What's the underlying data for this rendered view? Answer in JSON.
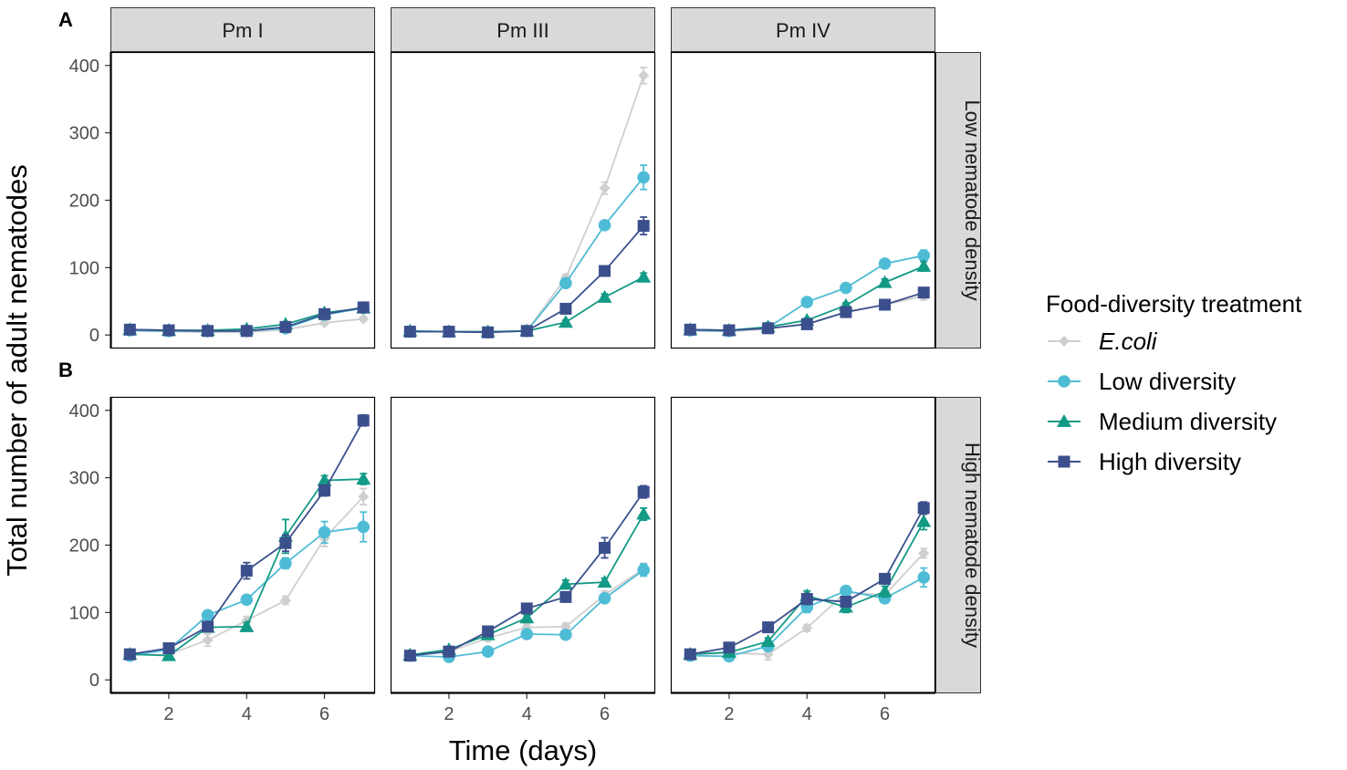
{
  "chart_data": {
    "type": "line",
    "panel_labels": [
      "A",
      "B"
    ],
    "xlabel": "Time (days)",
    "ylabel": "Total number of adult nematodes",
    "x": [
      1,
      2,
      3,
      4,
      5,
      6,
      7
    ],
    "xlim": [
      0.5,
      7.3
    ],
    "ylim": [
      -20,
      420
    ],
    "x_ticks": [
      2,
      4,
      6
    ],
    "y_ticks": [
      0,
      100,
      200,
      300,
      400
    ],
    "columns": [
      "Pm I",
      "Pm III",
      "Pm IV"
    ],
    "rows": [
      "Low nematode density",
      "High nematode density"
    ],
    "legend": {
      "title": "Food-diversity treatment",
      "position": "right",
      "entries": [
        {
          "label": "E.coli",
          "shape": "diamond",
          "color": "#cfcfcf",
          "italic": true
        },
        {
          "label": "Low diversity",
          "shape": "circle",
          "color": "#4fbcd6",
          "italic": false
        },
        {
          "label": "Medium diversity",
          "shape": "triangle",
          "color": "#139a86",
          "italic": false
        },
        {
          "label": "High diversity",
          "shape": "square",
          "color": "#3b4f8c",
          "italic": false
        }
      ]
    },
    "panels": [
      {
        "row": 0,
        "col": 0,
        "series": [
          {
            "name": "E.coli",
            "values": [
              6,
              5,
              4,
              4,
              8,
              18,
              24
            ],
            "err": [
              2,
              2,
              2,
              2,
              2,
              3,
              3
            ]
          },
          {
            "name": "Low diversity",
            "values": [
              7,
              6,
              6,
              6,
              10,
              30,
              40
            ],
            "err": [
              2,
              2,
              2,
              2,
              2,
              3,
              3
            ]
          },
          {
            "name": "Medium diversity",
            "values": [
              8,
              7,
              7,
              9,
              16,
              33,
              40
            ],
            "err": [
              2,
              2,
              2,
              2,
              2,
              3,
              3
            ]
          },
          {
            "name": "High diversity",
            "values": [
              8,
              7,
              6,
              6,
              12,
              31,
              41
            ],
            "err": [
              2,
              2,
              2,
              2,
              2,
              3,
              3
            ]
          }
        ]
      },
      {
        "row": 0,
        "col": 1,
        "series": [
          {
            "name": "E.coli",
            "values": [
              5,
              5,
              4,
              6,
              85,
              218,
              385
            ],
            "err": [
              2,
              2,
              2,
              2,
              5,
              9,
              12
            ]
          },
          {
            "name": "Low diversity",
            "values": [
              5,
              5,
              4,
              6,
              77,
              163,
              234
            ],
            "err": [
              2,
              2,
              2,
              2,
              6,
              6,
              18
            ]
          },
          {
            "name": "Medium diversity",
            "values": [
              6,
              5,
              5,
              6,
              19,
              56,
              86
            ],
            "err": [
              2,
              2,
              2,
              2,
              3,
              5,
              6
            ]
          },
          {
            "name": "High diversity",
            "values": [
              5,
              5,
              4,
              6,
              39,
              95,
              162
            ],
            "err": [
              2,
              2,
              2,
              2,
              3,
              4,
              13
            ]
          }
        ]
      },
      {
        "row": 0,
        "col": 2,
        "series": [
          {
            "name": "E.coli",
            "values": [
              6,
              5,
              9,
              17,
              34,
              45,
              58
            ],
            "err": [
              2,
              2,
              2,
              2,
              3,
              3,
              6
            ]
          },
          {
            "name": "Low diversity",
            "values": [
              7,
              6,
              11,
              49,
              70,
              106,
              118
            ],
            "err": [
              2,
              2,
              2,
              3,
              4,
              4,
              8
            ]
          },
          {
            "name": "Medium diversity",
            "values": [
              8,
              7,
              12,
              22,
              44,
              78,
              102
            ],
            "err": [
              2,
              2,
              2,
              3,
              4,
              5,
              7
            ]
          },
          {
            "name": "High diversity",
            "values": [
              8,
              7,
              10,
              16,
              34,
              45,
              63
            ],
            "err": [
              2,
              2,
              2,
              2,
              3,
              3,
              5
            ]
          }
        ]
      },
      {
        "row": 1,
        "col": 0,
        "series": [
          {
            "name": "E.coli",
            "values": [
              37,
              38,
              59,
              88,
              118,
              210,
              272
            ],
            "err": [
              4,
              4,
              9,
              6,
              6,
              12,
              12
            ]
          },
          {
            "name": "Low diversity",
            "values": [
              36,
              45,
              96,
              119,
              173,
              219,
              227
            ],
            "err": [
              4,
              4,
              6,
              6,
              8,
              16,
              22
            ]
          },
          {
            "name": "Medium diversity",
            "values": [
              38,
              36,
              78,
              79,
              213,
              296,
              298
            ],
            "err": [
              4,
              4,
              5,
              6,
              25,
              7,
              8
            ]
          },
          {
            "name": "High diversity",
            "values": [
              38,
              47,
              79,
              162,
              203,
              281,
              385
            ],
            "err": [
              4,
              4,
              5,
              12,
              12,
              8,
              8
            ]
          }
        ]
      },
      {
        "row": 1,
        "col": 1,
        "series": [
          {
            "name": "E.coli",
            "values": [
              37,
              42,
              62,
              78,
              79,
              126,
              165
            ],
            "err": [
              4,
              4,
              5,
              5,
              5,
              6,
              8
            ]
          },
          {
            "name": "Low diversity",
            "values": [
              36,
              34,
              42,
              68,
              67,
              121,
              163
            ],
            "err": [
              4,
              4,
              4,
              4,
              4,
              6,
              9
            ]
          },
          {
            "name": "Medium diversity",
            "values": [
              37,
              45,
              67,
              92,
              142,
              145,
              246
            ],
            "err": [
              4,
              4,
              5,
              5,
              6,
              6,
              9
            ]
          },
          {
            "name": "High diversity",
            "values": [
              36,
              42,
              72,
              106,
              123,
              196,
              279
            ],
            "err": [
              4,
              4,
              5,
              5,
              6,
              15,
              9
            ]
          }
        ]
      },
      {
        "row": 1,
        "col": 2,
        "series": [
          {
            "name": "E.coli",
            "values": [
              37,
              40,
              38,
              77,
              130,
              126,
              188
            ],
            "err": [
              4,
              4,
              8,
              5,
              6,
              6,
              7
            ]
          },
          {
            "name": "Low diversity",
            "values": [
              36,
              35,
              50,
              108,
              132,
              121,
              152
            ],
            "err": [
              4,
              4,
              5,
              8,
              7,
              7,
              14
            ]
          },
          {
            "name": "Medium diversity",
            "values": [
              38,
              41,
              57,
              125,
              108,
              131,
              235
            ],
            "err": [
              4,
              4,
              5,
              7,
              8,
              8,
              12
            ]
          },
          {
            "name": "High diversity",
            "values": [
              38,
              48,
              78,
              120,
              116,
              150,
              255
            ],
            "err": [
              4,
              4,
              5,
              8,
              7,
              6,
              9
            ]
          }
        ]
      }
    ]
  }
}
